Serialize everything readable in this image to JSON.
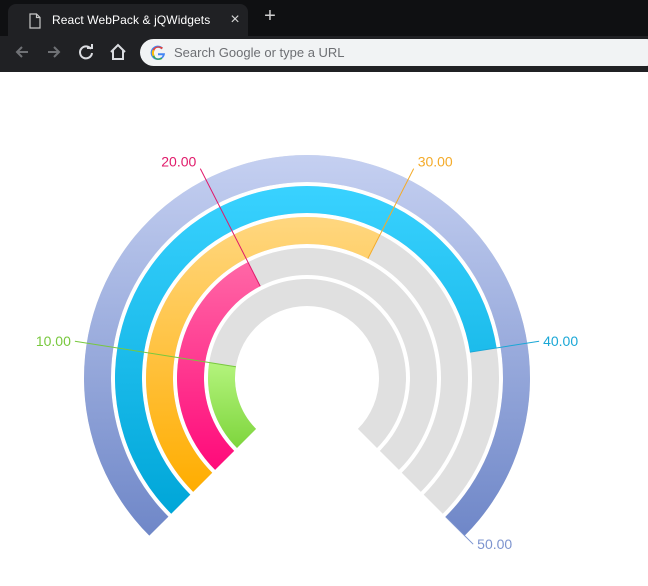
{
  "browser": {
    "tab_title": "React WebPack & jQWidgets",
    "tab_close": "×",
    "new_tab": "+",
    "search_placeholder": "Search Google or type a URL"
  },
  "icons": {
    "tab": "document-icon",
    "close": "close-icon",
    "new_tab": "plus-icon",
    "back": "back-arrow-icon",
    "forward": "forward-arrow-icon",
    "reload": "reload-icon",
    "home": "home-icon",
    "search": "google-g-icon"
  },
  "chart_data": {
    "type": "radial-bar",
    "min": 0,
    "max": 50,
    "start_angle_deg": 225,
    "end_angle_deg": -45,
    "tick_labels": [
      "10.00",
      "20.00",
      "30.00",
      "40.00",
      "50.00"
    ],
    "series": [
      {
        "value": 50,
        "label": "50.00",
        "color_top": "#c5d0f1",
        "color_bottom": "#6f87c8",
        "label_color": "#7d94cf"
      },
      {
        "value": 40,
        "label": "40.00",
        "color_top": "#39d2ff",
        "color_bottom": "#00a6d8",
        "label_color": "#1aa7d6"
      },
      {
        "value": 30,
        "label": "30.00",
        "color_top": "#ffd780",
        "color_bottom": "#ffad00",
        "label_color": "#f4ab2a"
      },
      {
        "value": 20,
        "label": "20.00",
        "color_top": "#ff67a6",
        "color_bottom": "#ff0a7a",
        "label_color": "#e01a6a"
      },
      {
        "value": 10,
        "label": "10.00",
        "color_top": "#b4f47d",
        "color_bottom": "#7ed53d",
        "label_color": "#78c83e"
      }
    ],
    "track_color": "#e0e0e0"
  }
}
